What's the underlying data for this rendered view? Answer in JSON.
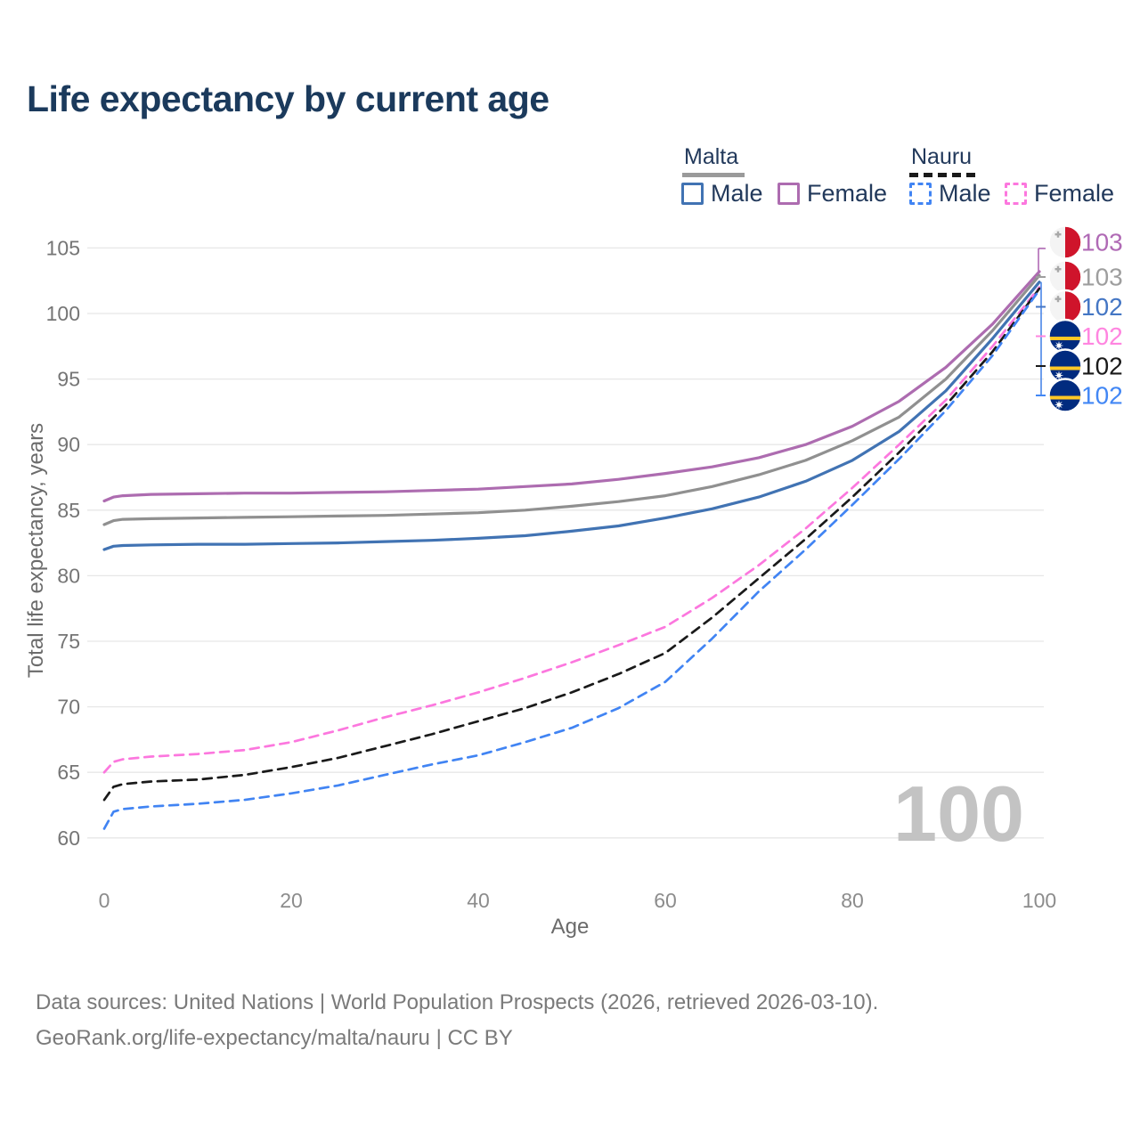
{
  "title": "Life expectancy by current age",
  "watermark": "100",
  "legend": {
    "groups": [
      {
        "country": "Malta",
        "line_style": "solid",
        "underline_color": "#9a9a9a",
        "items": [
          {
            "label": "Male",
            "color": "#4173b3"
          },
          {
            "label": "Female",
            "color": "#ad6cb0"
          }
        ]
      },
      {
        "country": "Nauru",
        "line_style": "dashed",
        "underline_color": "#1a1a1a",
        "items": [
          {
            "label": "Male",
            "color": "#4184f3"
          },
          {
            "label": "Female",
            "color": "#fc77de"
          }
        ]
      }
    ]
  },
  "axes": {
    "y_title": "Total life expectancy, years",
    "x_title": "Age",
    "y_ticks": [
      60,
      65,
      70,
      75,
      80,
      85,
      90,
      95,
      100,
      105
    ],
    "x_ticks": [
      0,
      20,
      40,
      60,
      80,
      100
    ]
  },
  "end_labels": [
    {
      "value": "103",
      "flag": "malta",
      "color": "#b06ab5"
    },
    {
      "value": "103",
      "flag": "malta",
      "color": "#9e9e9e"
    },
    {
      "value": "102",
      "flag": "malta",
      "color": "#4476c4"
    },
    {
      "value": "102",
      "flag": "nauru",
      "color": "#ff85e0"
    },
    {
      "value": "102",
      "flag": "nauru",
      "color": "#1a1a1a"
    },
    {
      "value": "102",
      "flag": "nauru",
      "color": "#4287f5"
    }
  ],
  "footer": {
    "line1": "Data sources: United Nations | World Population Prospects (2026, retrieved 2026-03-10).",
    "line2": "GeoRank.org/life-expectancy/malta/nauru | CC BY"
  },
  "chart_data": {
    "type": "line",
    "title": "Life expectancy by current age",
    "xlabel": "Age",
    "ylabel": "Total life expectancy, years",
    "xlim": [
      0,
      100
    ],
    "ylim": [
      60,
      105
    ],
    "grid": true,
    "x": [
      0,
      1,
      2,
      5,
      10,
      15,
      20,
      25,
      30,
      35,
      40,
      45,
      50,
      55,
      60,
      65,
      70,
      75,
      80,
      85,
      90,
      95,
      100
    ],
    "series": [
      {
        "name": "Malta Female",
        "color": "#ad6cb0",
        "dash": "solid",
        "end_label": "103",
        "values": [
          85.7,
          86.0,
          86.1,
          86.2,
          86.25,
          86.3,
          86.3,
          86.35,
          86.4,
          86.5,
          86.6,
          86.8,
          87.0,
          87.35,
          87.8,
          88.3,
          89.0,
          90.0,
          91.4,
          93.3,
          95.9,
          99.2,
          103.2
        ]
      },
      {
        "name": "Malta Both sexes",
        "color": "#909090",
        "dash": "solid",
        "end_label": "103",
        "values": [
          83.9,
          84.2,
          84.3,
          84.35,
          84.4,
          84.45,
          84.5,
          84.55,
          84.6,
          84.7,
          84.8,
          85.0,
          85.3,
          85.65,
          86.1,
          86.8,
          87.7,
          88.8,
          90.3,
          92.1,
          95.0,
          98.7,
          102.9
        ]
      },
      {
        "name": "Malta Male",
        "color": "#4173b3",
        "dash": "solid",
        "end_label": "102",
        "values": [
          82.0,
          82.25,
          82.3,
          82.35,
          82.4,
          82.4,
          82.45,
          82.5,
          82.6,
          82.7,
          82.85,
          83.05,
          83.4,
          83.8,
          84.4,
          85.1,
          86.0,
          87.2,
          88.8,
          91.0,
          94.1,
          98.1,
          102.4
        ]
      },
      {
        "name": "Nauru Female",
        "color": "#fc77de",
        "dash": "dashed",
        "end_label": "102",
        "values": [
          65.0,
          65.8,
          66.0,
          66.2,
          66.4,
          66.7,
          67.3,
          68.2,
          69.2,
          70.1,
          71.1,
          72.2,
          73.4,
          74.7,
          76.1,
          78.3,
          80.8,
          83.6,
          86.7,
          90.0,
          93.4,
          97.5,
          102.0
        ]
      },
      {
        "name": "Nauru Both sexes",
        "color": "#1a1a1a",
        "dash": "dashed",
        "end_label": "102",
        "values": [
          62.9,
          63.9,
          64.1,
          64.3,
          64.45,
          64.8,
          65.4,
          66.1,
          67.0,
          67.9,
          68.9,
          69.9,
          71.1,
          72.5,
          74.1,
          76.8,
          79.8,
          82.8,
          86.0,
          89.4,
          93.0,
          97.1,
          101.9
        ]
      },
      {
        "name": "Nauru Male",
        "color": "#4184f3",
        "dash": "dashed",
        "end_label": "102",
        "values": [
          60.7,
          62.0,
          62.2,
          62.4,
          62.6,
          62.9,
          63.4,
          64.0,
          64.8,
          65.6,
          66.3,
          67.3,
          68.4,
          69.9,
          71.9,
          75.2,
          78.8,
          82.0,
          85.4,
          88.9,
          92.6,
          96.8,
          101.8
        ]
      }
    ]
  }
}
